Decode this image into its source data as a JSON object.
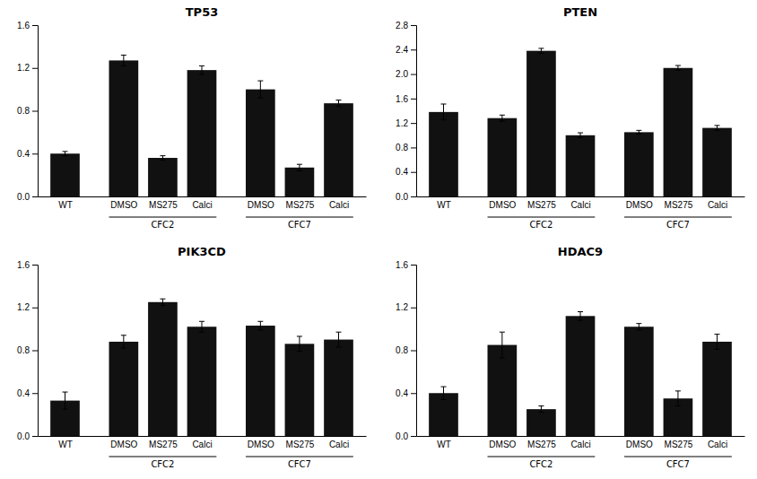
{
  "chart_data": [
    {
      "type": "bar",
      "title": "TP53",
      "categories": [
        "WT",
        "DMSO",
        "MS275",
        "Calci",
        "DMSO",
        "MS275",
        "Calci"
      ],
      "groups": [
        null,
        "CFC2",
        "CFC2",
        "CFC2",
        "CFC7",
        "CFC7",
        "CFC7"
      ],
      "values": [
        0.4,
        1.27,
        0.36,
        1.18,
        1.0,
        0.27,
        0.87
      ],
      "errors": [
        0.02,
        0.05,
        0.02,
        0.04,
        0.08,
        0.03,
        0.03
      ],
      "color": "#111111",
      "ylim": [
        0,
        1.6
      ],
      "yticks": [
        {
          "value": 0,
          "label": "0.0"
        },
        0.4,
        0.8,
        1.2,
        1.6
      ]
    },
    {
      "type": "bar",
      "title": "PTEN",
      "categories": [
        "WT",
        "DMSO",
        "MS275",
        "Calci",
        "DMSO",
        "MS275",
        "Calci"
      ],
      "groups": [
        null,
        "CFC2",
        "CFC2",
        "CFC2",
        "CFC7",
        "CFC7",
        "CFC7"
      ],
      "values": [
        1.38,
        1.28,
        2.38,
        1.0,
        1.05,
        2.1,
        1.12
      ],
      "errors": [
        0.13,
        0.05,
        0.04,
        0.04,
        0.03,
        0.04,
        0.04
      ],
      "color": "#111111",
      "ylim": [
        0,
        2.8
      ],
      "yticks": [
        {
          "value": 0,
          "label": "0.0"
        },
        0.4,
        0.8,
        1.2,
        1.6,
        {
          "value": 2,
          "label": "2.0"
        },
        2.4,
        2.8
      ]
    },
    {
      "type": "bar",
      "title": "PIK3CD",
      "categories": [
        "WT",
        "DMSO",
        "MS275",
        "Calci",
        "DMSO",
        "MS275",
        "Calci"
      ],
      "groups": [
        null,
        "CFC2",
        "CFC2",
        "CFC2",
        "CFC7",
        "CFC7",
        "CFC7"
      ],
      "values": [
        0.33,
        0.88,
        1.25,
        1.02,
        1.03,
        0.86,
        0.9
      ],
      "errors": [
        0.08,
        0.06,
        0.03,
        0.05,
        0.04,
        0.07,
        0.07
      ],
      "color": "#111111",
      "ylim": [
        0,
        1.6
      ],
      "yticks": [
        {
          "value": 0,
          "label": "0.0"
        },
        0.4,
        0.8,
        1.2,
        1.6
      ]
    },
    {
      "type": "bar",
      "title": "HDAC9",
      "categories": [
        "WT",
        "DMSO",
        "MS275",
        "Calci",
        "DMSO",
        "MS275",
        "Calci"
      ],
      "groups": [
        null,
        "CFC2",
        "CFC2",
        "CFC2",
        "CFC7",
        "CFC7",
        "CFC7"
      ],
      "values": [
        0.4,
        0.85,
        0.25,
        1.12,
        1.02,
        0.35,
        0.88
      ],
      "errors": [
        0.06,
        0.12,
        0.03,
        0.04,
        0.03,
        0.07,
        0.07
      ],
      "color": "#111111",
      "ylim": [
        0,
        1.6
      ],
      "yticks": [
        {
          "value": 0,
          "label": "0.0"
        },
        0.4,
        0.8,
        1.2,
        1.6
      ]
    }
  ]
}
